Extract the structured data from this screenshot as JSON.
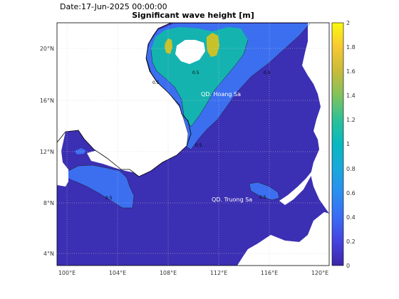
{
  "header": {
    "date_text": "Date:17-Jun-2025 00:00:00",
    "title": "Significant wave height [m]"
  },
  "map": {
    "lon_ticks": [
      "100°E",
      "104°E",
      "108°E",
      "112°E",
      "116°E",
      "120°E"
    ],
    "lat_ticks": [
      "20°N",
      "16°N",
      "12°N",
      "8°N",
      "4°N"
    ],
    "place_labels": [
      "QD. Hoang Sa",
      "QD. Truong Sa"
    ],
    "contour_labels": [
      "0.5",
      "0.5",
      "0.5",
      "0.5",
      "0.5",
      "0.5"
    ]
  },
  "colorbar": {
    "ticks": [
      "2",
      "1.8",
      "1.6",
      "1.4",
      "1.2",
      "1",
      "0.8",
      "0.6",
      "0.4",
      "0.2",
      "0"
    ]
  },
  "colors": {
    "land": "#ffffff",
    "sea_low": "#3b2fb3",
    "sea_mid": "#3b6ff0",
    "sea_high": "#15b3b0",
    "sea_peak": "#c8c22a"
  }
}
